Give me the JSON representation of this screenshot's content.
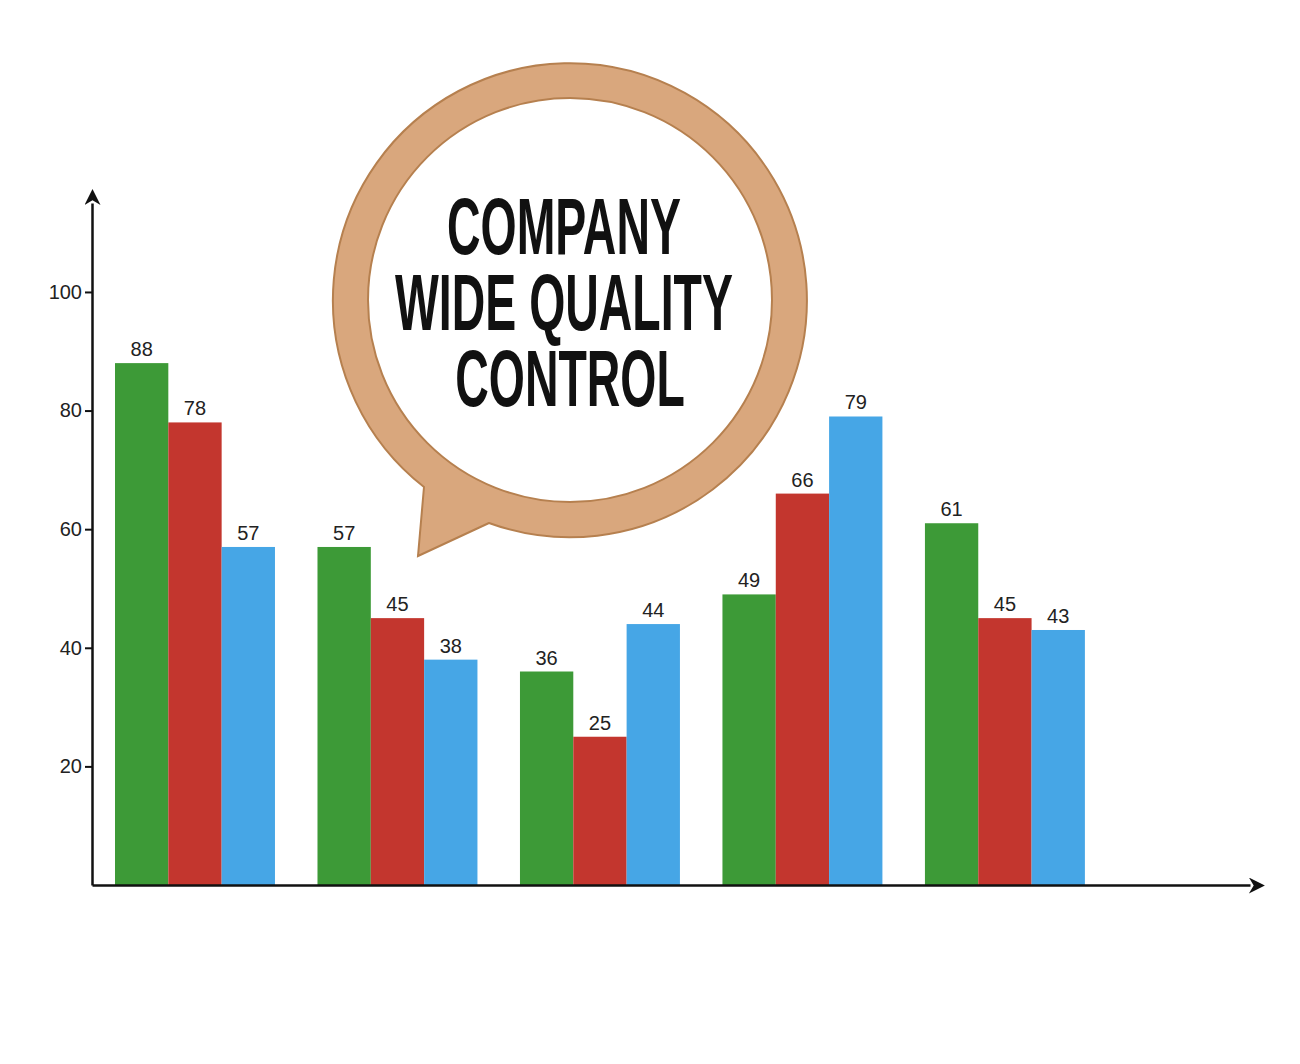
{
  "chart_data": {
    "type": "bar",
    "title": "COMPANY WIDE QUALITY CONTROL",
    "categories": [
      null,
      null,
      null,
      null,
      null
    ],
    "series": [
      {
        "color": "#3d9a37",
        "values": [
          88,
          57,
          36,
          49,
          61
        ]
      },
      {
        "color": "#c3362e",
        "values": [
          78,
          45,
          25,
          66,
          45
        ]
      },
      {
        "color": "#46a6e6",
        "values": [
          57,
          38,
          44,
          79,
          43
        ]
      }
    ],
    "ylim": [
      0,
      115
    ],
    "yticks": [
      20,
      40,
      60,
      80,
      100
    ],
    "grid": false,
    "data_labels": true,
    "tick_labels": "y"
  }
}
